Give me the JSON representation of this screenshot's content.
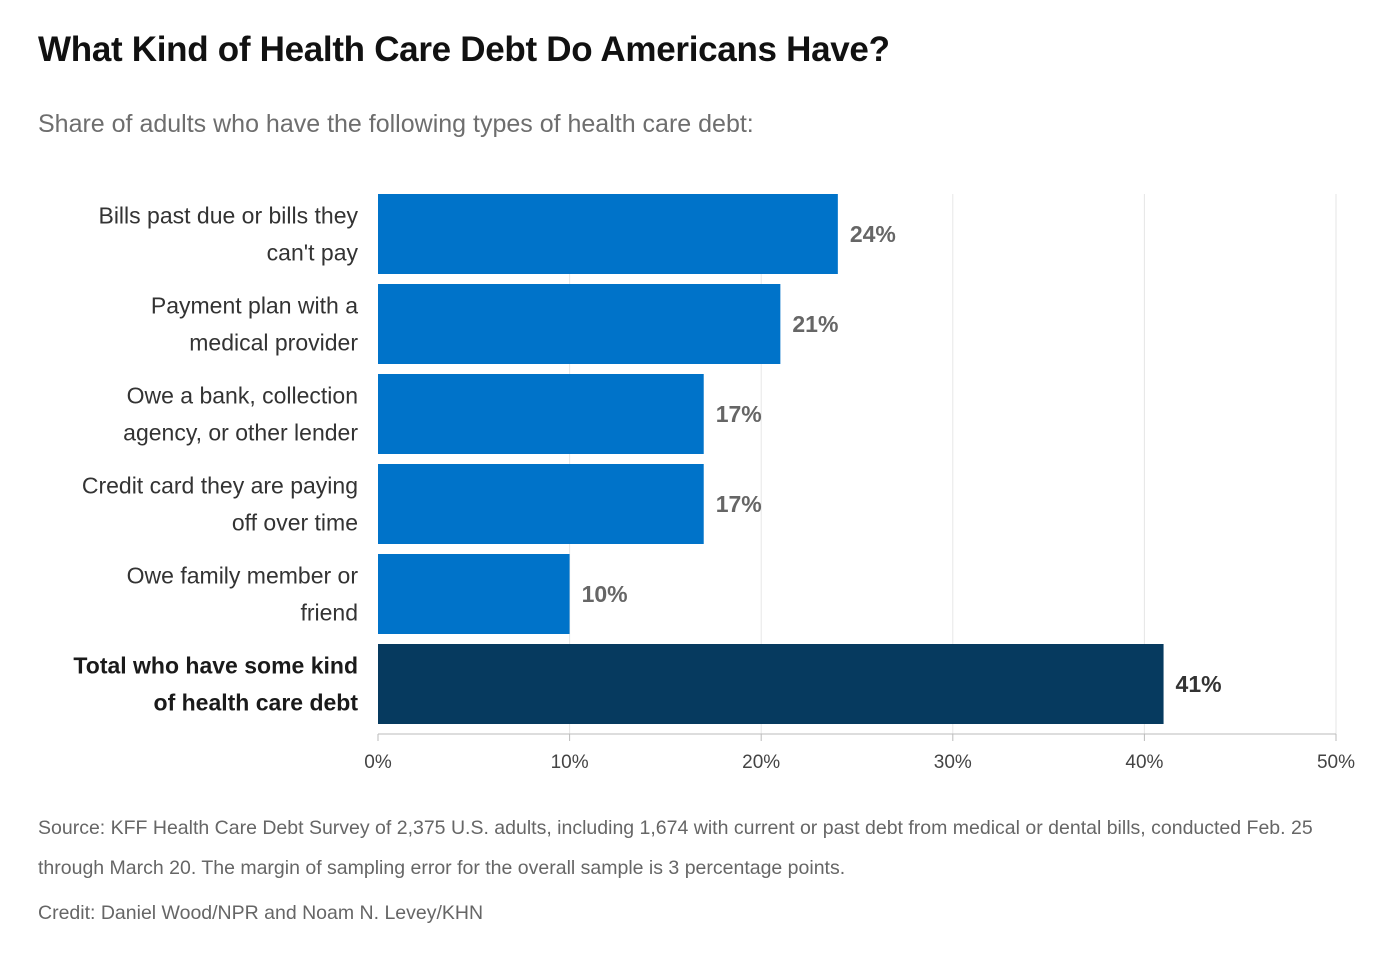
{
  "title": "What Kind of Health Care Debt Do Americans Have?",
  "subtitle": "Share of adults who have the following types of health care debt:",
  "chart_data": {
    "type": "bar",
    "orientation": "horizontal",
    "categories": [
      [
        "Bills past due or bills they",
        "can't pay"
      ],
      [
        "Payment plan with a",
        "medical provider"
      ],
      [
        "Owe a bank, collection",
        "agency, or other lender"
      ],
      [
        "Credit card they are paying",
        "off over time"
      ],
      [
        "Owe family member or",
        "friend"
      ],
      [
        "Total who have some kind",
        "of health care debt"
      ]
    ],
    "values": [
      24,
      21,
      17,
      17,
      10,
      41
    ],
    "value_labels": [
      "24%",
      "21%",
      "17%",
      "17%",
      "10%",
      "41%"
    ],
    "highlight": [
      false,
      false,
      false,
      false,
      false,
      true
    ],
    "xlim": [
      0,
      50
    ],
    "xticks": [
      0,
      10,
      20,
      30,
      40,
      50
    ],
    "xtick_labels": [
      "0%",
      "10%",
      "20%",
      "30%",
      "40%",
      "50%"
    ],
    "grid": "vertical",
    "legend": "none",
    "colors": {
      "bar": "#0073c9",
      "highlight_bar": "#063a5f",
      "gridline": "#e6e6e6",
      "axis": "#bbbbbb"
    }
  },
  "footer": {
    "source": "Source: KFF Health Care Debt Survey of 2,375 U.S. adults, including 1,674 with current or past debt from medical or dental bills, conducted Feb. 25 through March 20. The margin of sampling error for the overall sample is 3 percentage points.",
    "credit": "Credit: Daniel Wood/NPR and Noam N. Levey/KHN"
  }
}
